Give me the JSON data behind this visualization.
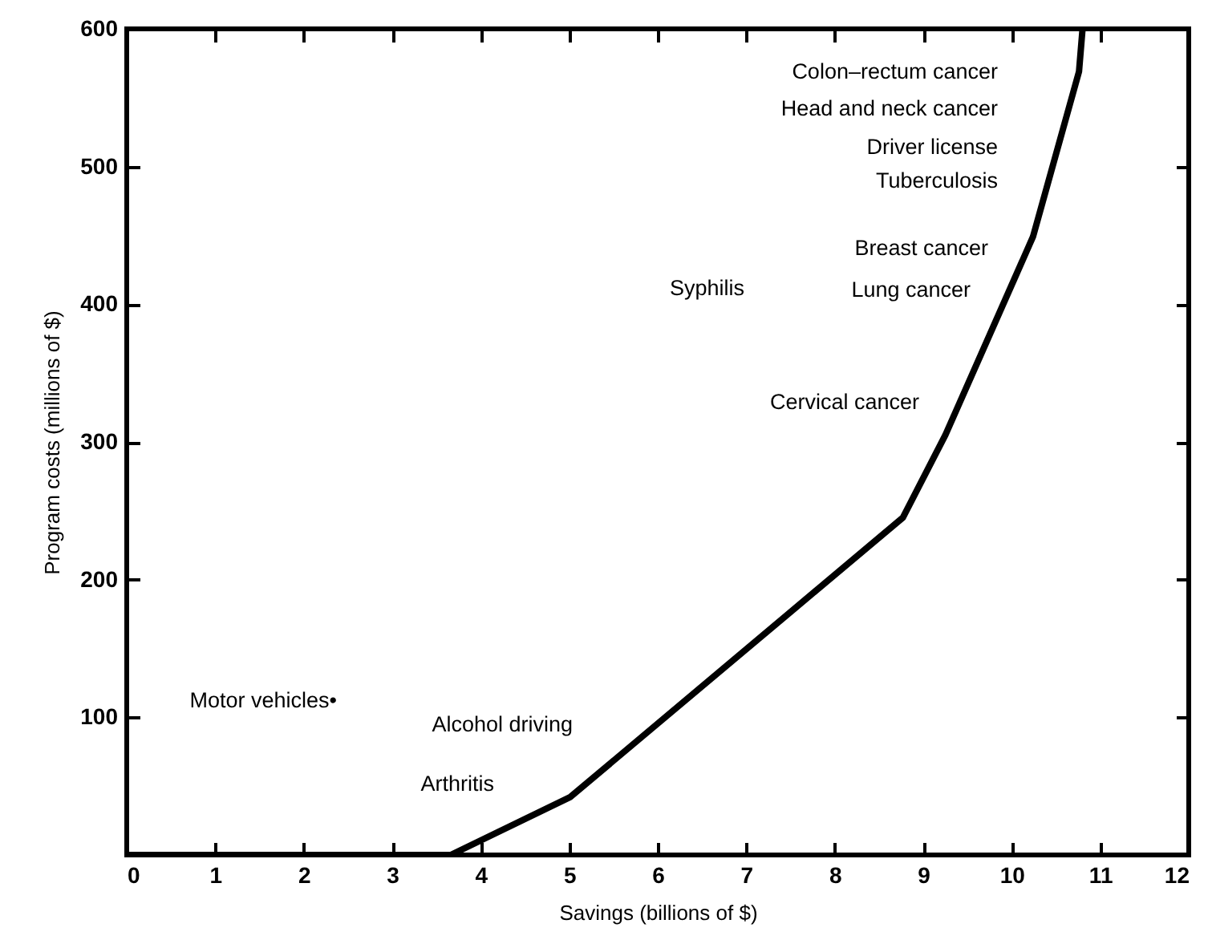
{
  "chart_data": {
    "type": "line",
    "xlabel": "Savings (billions of $)",
    "ylabel": "Program costs (millions of $)",
    "x": [
      0,
      3.66,
      5.01,
      8.77,
      9.25,
      10.24,
      10.76,
      10.8
    ],
    "series": [
      {
        "color": "#000000",
        "values": [
          0,
          0,
          42,
          245,
          305,
          449,
          569,
          600
        ]
      }
    ],
    "xlim": [
      0,
      12
    ],
    "ylim": [
      0,
      600
    ],
    "xticks": [
      0,
      1,
      2,
      3,
      4,
      5,
      6,
      7,
      8,
      9,
      10,
      11,
      12
    ],
    "yticks": [
      {
        "value": 0,
        "label": null
      },
      100,
      200,
      300,
      400,
      500,
      600
    ],
    "grid": false,
    "marker": "none",
    "line_style": "solid",
    "annotations": [
      "Colon–rectum cancer",
      "Head and neck cancer",
      "Driver license",
      "Tuberculosis",
      "Breast cancer",
      "Lung cancer",
      "Cervical cancer",
      "Syphilis",
      "Alcohol driving",
      "Arthritis",
      "Motor vehicles•"
    ]
  }
}
